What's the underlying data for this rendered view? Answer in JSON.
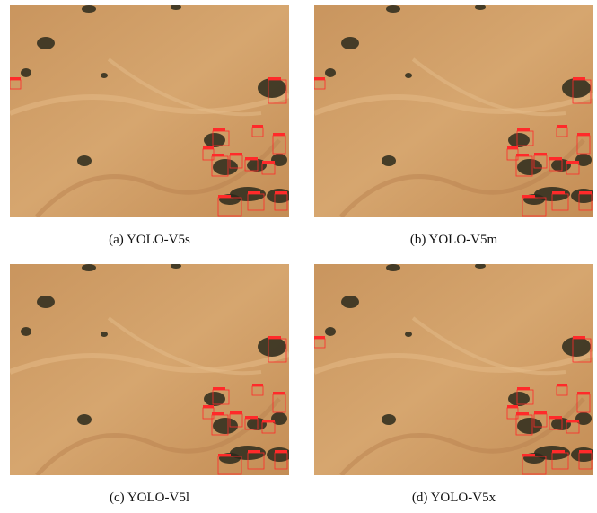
{
  "figure": {
    "panels": [
      {
        "caption": "(a)  YOLO-V5s"
      },
      {
        "caption": "(b)  YOLO-V5m"
      },
      {
        "caption": "(c)  YOLO-V5l"
      },
      {
        "caption": "(d)  YOLO-V5x"
      }
    ]
  }
}
